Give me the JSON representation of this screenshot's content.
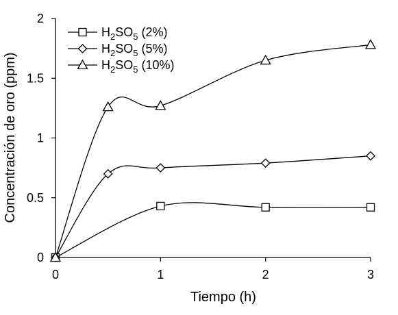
{
  "chart_data": {
    "type": "line",
    "xlabel": "Tiempo (h)",
    "ylabel": "Concentración de oro (ppm)",
    "xlim": [
      0,
      3
    ],
    "ylim": [
      0,
      2
    ],
    "x_ticks": [
      "0",
      "1",
      "2",
      "3"
    ],
    "y_ticks": [
      "0",
      "0.5",
      "1",
      "1.5",
      "2"
    ],
    "grid": false,
    "legend_position": "top-left",
    "series": [
      {
        "name": "H2SO5 (2%)",
        "legend_parts": [
          "H",
          "2",
          "SO",
          "5",
          " (2%)"
        ],
        "marker": "square",
        "x": [
          0,
          1,
          2,
          3
        ],
        "y": [
          0,
          0.43,
          0.42,
          0.42
        ]
      },
      {
        "name": "H2SO5 (5%)",
        "legend_parts": [
          "H",
          "2",
          "SO",
          "5",
          " (5%)"
        ],
        "marker": "diamond",
        "x": [
          0,
          0.5,
          1,
          2,
          3
        ],
        "y": [
          0,
          0.7,
          0.75,
          0.79,
          0.85
        ]
      },
      {
        "name": "H2SO5 (10%)",
        "legend_parts": [
          "H",
          "2",
          "SO",
          "5",
          " (10%)"
        ],
        "marker": "triangle",
        "x": [
          0,
          0.5,
          1,
          2,
          3
        ],
        "y": [
          0,
          1.26,
          1.27,
          1.65,
          1.78
        ]
      }
    ]
  }
}
